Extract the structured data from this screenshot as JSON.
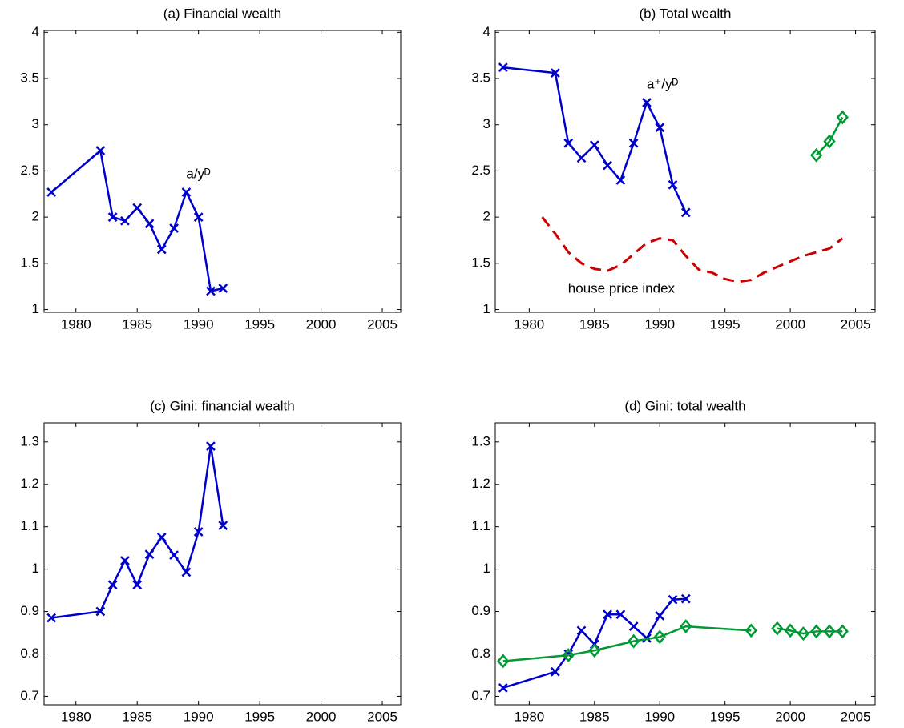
{
  "chart_data": [
    {
      "type": "line",
      "title": "(a) Financial wealth",
      "xlim": [
        1977.4,
        2006.5
      ],
      "xticks": [
        1980,
        1985,
        1990,
        1995,
        2000,
        2005
      ],
      "ylim": [
        0.97,
        4.02
      ],
      "yticks": [
        1,
        1.5,
        2,
        2.5,
        3,
        3.5,
        4
      ],
      "annotations": [
        "a/yᴰ"
      ],
      "series": [
        {
          "color": "#0000cc",
          "marker": "x",
          "dashed": false,
          "x": [
            1978,
            1982,
            1983,
            1984,
            1985,
            1986,
            1987,
            1988,
            1989,
            1990,
            1991,
            1992
          ],
          "values": [
            2.27,
            2.72,
            2.0,
            1.96,
            2.1,
            1.93,
            1.65,
            1.88,
            2.27,
            2.0,
            1.2,
            1.23
          ]
        }
      ]
    },
    {
      "type": "line",
      "title": "(b) Total wealth",
      "xlim": [
        1977.4,
        2006.5
      ],
      "xticks": [
        1980,
        1985,
        1990,
        1995,
        2000,
        2005
      ],
      "ylim": [
        0.97,
        4.02
      ],
      "yticks": [
        1,
        1.5,
        2,
        2.5,
        3,
        3.5,
        4
      ],
      "annotations": [
        "a⁺/yᴰ",
        "house price index"
      ],
      "series": [
        {
          "color": "#0000cc",
          "marker": "x",
          "dashed": false,
          "x": [
            1978,
            1982,
            1983,
            1984,
            1985,
            1986,
            1987,
            1988,
            1989,
            1990,
            1991,
            1992
          ],
          "values": [
            3.62,
            3.56,
            2.8,
            2.64,
            2.78,
            2.56,
            2.4,
            2.8,
            3.24,
            2.97,
            2.35,
            2.05
          ]
        },
        {
          "color": "#009933",
          "marker": "diamond",
          "dashed": false,
          "x": [
            2002,
            2003,
            2004
          ],
          "values": [
            2.67,
            2.82,
            3.08
          ]
        },
        {
          "color": "#cc0000",
          "marker": "none",
          "dashed": true,
          "x": [
            1981,
            1982,
            1983,
            1984,
            1985,
            1986,
            1987,
            1988,
            1989,
            1990,
            1991,
            1992,
            1993,
            1994,
            1995,
            1996,
            1997,
            1998,
            1999,
            2000,
            2001,
            2002,
            2003,
            2004
          ],
          "values": [
            2.0,
            1.82,
            1.62,
            1.5,
            1.44,
            1.42,
            1.48,
            1.6,
            1.72,
            1.77,
            1.75,
            1.58,
            1.43,
            1.4,
            1.33,
            1.3,
            1.32,
            1.4,
            1.46,
            1.52,
            1.58,
            1.62,
            1.66,
            1.77
          ]
        }
      ]
    },
    {
      "type": "line",
      "title": "(c) Gini: financial wealth",
      "xlim": [
        1977.4,
        2006.5
      ],
      "xticks": [
        1980,
        1985,
        1990,
        1995,
        2000,
        2005
      ],
      "ylim": [
        0.68,
        1.345
      ],
      "yticks": [
        0.7,
        0.8,
        0.9,
        1,
        1.1,
        1.2,
        1.3
      ],
      "annotations": [],
      "series": [
        {
          "color": "#0000cc",
          "marker": "x",
          "dashed": false,
          "x": [
            1978,
            1982,
            1983,
            1984,
            1985,
            1986,
            1987,
            1988,
            1989,
            1990,
            1991,
            1992
          ],
          "values": [
            0.885,
            0.9,
            0.963,
            1.02,
            0.963,
            1.035,
            1.075,
            1.033,
            0.993,
            1.088,
            1.29,
            1.103
          ]
        }
      ]
    },
    {
      "type": "line",
      "title": "(d) Gini: total wealth",
      "xlim": [
        1977.4,
        2006.5
      ],
      "xticks": [
        1980,
        1985,
        1990,
        1995,
        2000,
        2005
      ],
      "ylim": [
        0.68,
        1.345
      ],
      "yticks": [
        0.7,
        0.8,
        0.9,
        1,
        1.1,
        1.2,
        1.3
      ],
      "annotations": [],
      "series": [
        {
          "color": "#0000cc",
          "marker": "x",
          "dashed": false,
          "x": [
            1978,
            1982,
            1983,
            1984,
            1985,
            1986,
            1987,
            1988,
            1989,
            1990,
            1991,
            1992
          ],
          "values": [
            0.72,
            0.758,
            0.8,
            0.855,
            0.823,
            0.893,
            0.893,
            0.865,
            0.837,
            0.89,
            0.928,
            0.93
          ]
        },
        {
          "color": "#009933",
          "marker": "diamond",
          "dashed": false,
          "x": [
            1978,
            1983,
            1985,
            1988,
            1990,
            1992,
            1997,
            1998,
            1999,
            2000,
            2001,
            2002,
            2003,
            2004
          ],
          "values": [
            0.783,
            0.797,
            0.808,
            0.83,
            0.84,
            0.865,
            0.855,
            null,
            0.86,
            0.855,
            0.848,
            0.853,
            0.853,
            0.853
          ]
        }
      ]
    }
  ]
}
